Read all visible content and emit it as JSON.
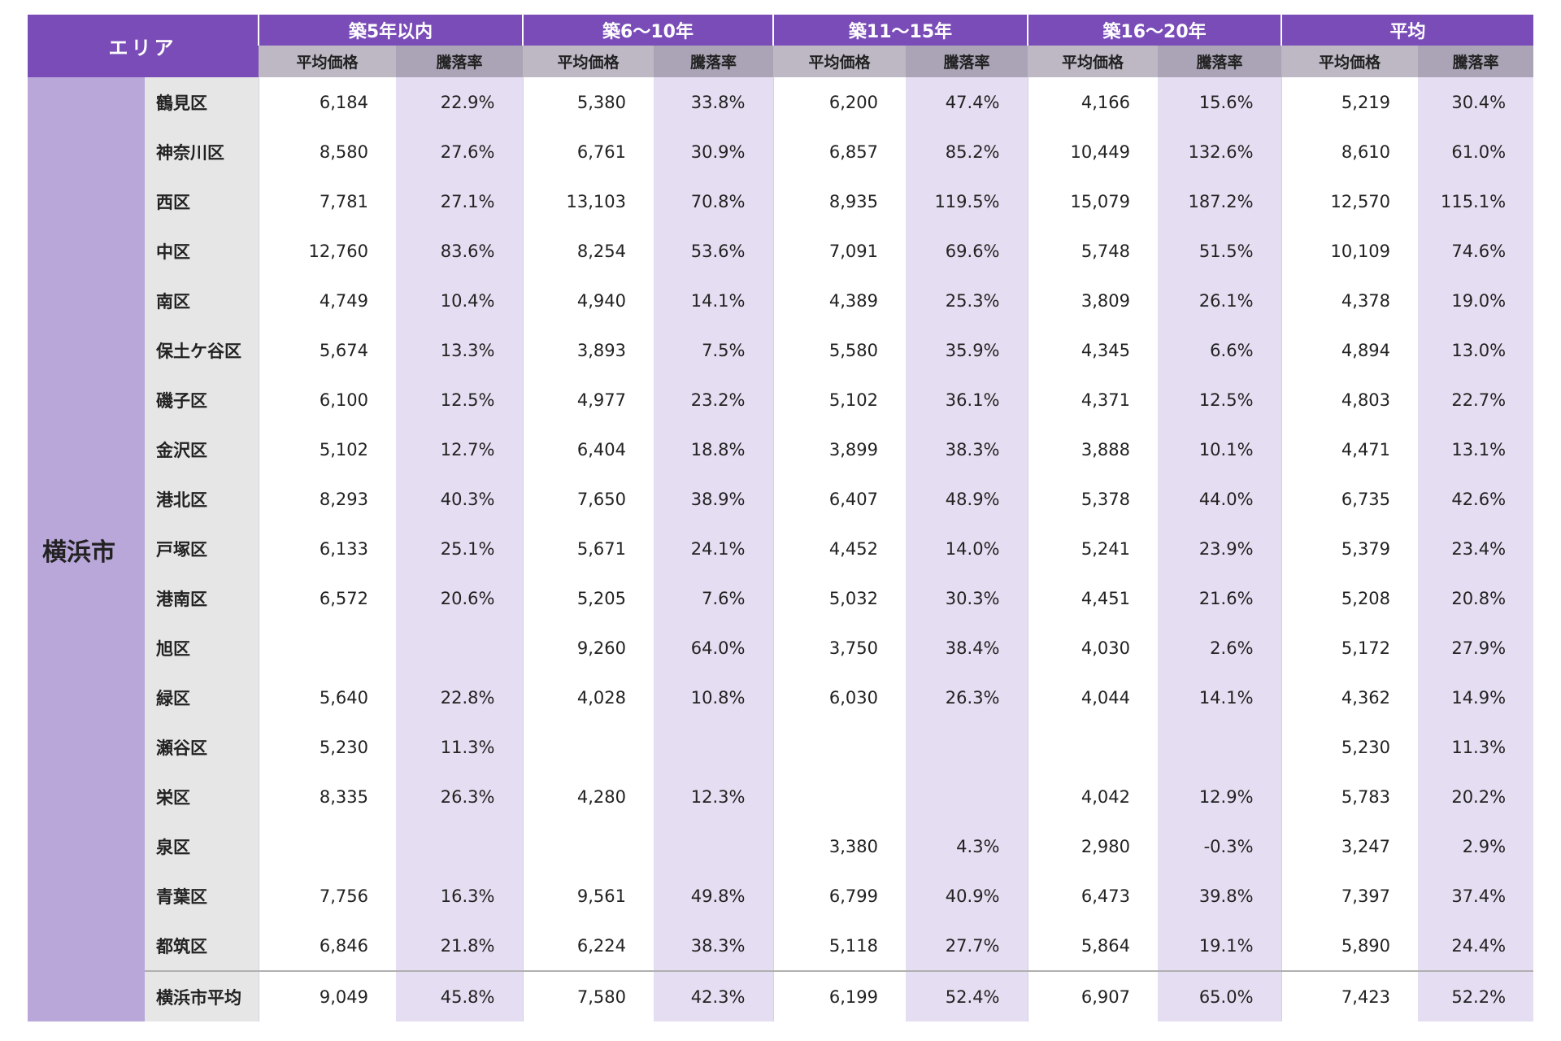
{
  "header": {
    "area_label": "エリア",
    "groups": [
      "築5年以内",
      "築6〜10年",
      "築11〜15年",
      "築16〜20年",
      "平均"
    ],
    "sub": [
      "平均価格",
      "騰落率",
      "平均価格",
      "騰落率",
      "平均価格",
      "騰落率",
      "平均価格",
      "騰落率",
      "平均価格",
      "騰落率"
    ]
  },
  "table": {
    "area": "横浜市",
    "rows": [
      {
        "name": "鶴見区",
        "cells": [
          "6,184",
          "22.9%",
          "5,380",
          "33.8%",
          "6,200",
          "47.4%",
          "4,166",
          "15.6%",
          "5,219",
          "30.4%"
        ]
      },
      {
        "name": "神奈川区",
        "cells": [
          "8,580",
          "27.6%",
          "6,761",
          "30.9%",
          "6,857",
          "85.2%",
          "10,449",
          "132.6%",
          "8,610",
          "61.0%"
        ]
      },
      {
        "name": "西区",
        "cells": [
          "7,781",
          "27.1%",
          "13,103",
          "70.8%",
          "8,935",
          "119.5%",
          "15,079",
          "187.2%",
          "12,570",
          "115.1%"
        ]
      },
      {
        "name": "中区",
        "cells": [
          "12,760",
          "83.6%",
          "8,254",
          "53.6%",
          "7,091",
          "69.6%",
          "5,748",
          "51.5%",
          "10,109",
          "74.6%"
        ]
      },
      {
        "name": "南区",
        "cells": [
          "4,749",
          "10.4%",
          "4,940",
          "14.1%",
          "4,389",
          "25.3%",
          "3,809",
          "26.1%",
          "4,378",
          "19.0%"
        ]
      },
      {
        "name": "保土ケ谷区",
        "cells": [
          "5,674",
          "13.3%",
          "3,893",
          "7.5%",
          "5,580",
          "35.9%",
          "4,345",
          "6.6%",
          "4,894",
          "13.0%"
        ]
      },
      {
        "name": "磯子区",
        "cells": [
          "6,100",
          "12.5%",
          "4,977",
          "23.2%",
          "5,102",
          "36.1%",
          "4,371",
          "12.5%",
          "4,803",
          "22.7%"
        ]
      },
      {
        "name": "金沢区",
        "cells": [
          "5,102",
          "12.7%",
          "6,404",
          "18.8%",
          "3,899",
          "38.3%",
          "3,888",
          "10.1%",
          "4,471",
          "13.1%"
        ]
      },
      {
        "name": "港北区",
        "cells": [
          "8,293",
          "40.3%",
          "7,650",
          "38.9%",
          "6,407",
          "48.9%",
          "5,378",
          "44.0%",
          "6,735",
          "42.6%"
        ]
      },
      {
        "name": "戸塚区",
        "cells": [
          "6,133",
          "25.1%",
          "5,671",
          "24.1%",
          "4,452",
          "14.0%",
          "5,241",
          "23.9%",
          "5,379",
          "23.4%"
        ]
      },
      {
        "name": "港南区",
        "cells": [
          "6,572",
          "20.6%",
          "5,205",
          "7.6%",
          "5,032",
          "30.3%",
          "4,451",
          "21.6%",
          "5,208",
          "20.8%"
        ]
      },
      {
        "name": "旭区",
        "cells": [
          null,
          null,
          "9,260",
          "64.0%",
          "3,750",
          "38.4%",
          "4,030",
          "2.6%",
          "5,172",
          "27.9%"
        ]
      },
      {
        "name": "緑区",
        "cells": [
          "5,640",
          "22.8%",
          "4,028",
          "10.8%",
          "6,030",
          "26.3%",
          "4,044",
          "14.1%",
          "4,362",
          "14.9%"
        ]
      },
      {
        "name": "瀬谷区",
        "cells": [
          "5,230",
          "11.3%",
          null,
          null,
          null,
          null,
          null,
          null,
          "5,230",
          "11.3%"
        ]
      },
      {
        "name": "栄区",
        "cells": [
          "8,335",
          "26.3%",
          "4,280",
          "12.3%",
          null,
          null,
          "4,042",
          "12.9%",
          "5,783",
          "20.2%"
        ]
      },
      {
        "name": "泉区",
        "cells": [
          null,
          null,
          null,
          null,
          "3,380",
          "4.3%",
          "2,980",
          "-0.3%",
          "3,247",
          "2.9%"
        ]
      },
      {
        "name": "青葉区",
        "cells": [
          "7,756",
          "16.3%",
          "9,561",
          "49.8%",
          "6,799",
          "40.9%",
          "6,473",
          "39.8%",
          "7,397",
          "37.4%"
        ]
      },
      {
        "name": "都筑区",
        "cells": [
          "6,846",
          "21.8%",
          "6,224",
          "38.3%",
          "5,118",
          "27.7%",
          "5,864",
          "19.1%",
          "5,890",
          "24.4%"
        ]
      },
      {
        "name": "横浜市平均",
        "cells": [
          "9,049",
          "45.8%",
          "7,580",
          "42.3%",
          "6,199",
          "52.4%",
          "6,907",
          "65.0%",
          "7,423",
          "52.2%"
        ]
      }
    ]
  }
}
